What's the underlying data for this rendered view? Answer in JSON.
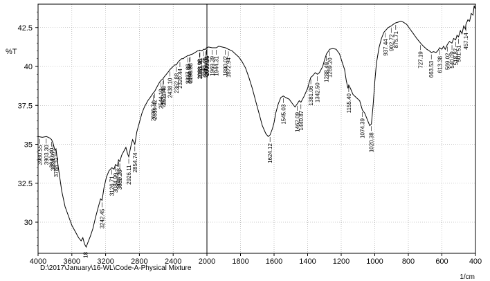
{
  "chart_data": {
    "type": "line",
    "title": "",
    "ylabel": "%T",
    "xunit_label": "1/cm",
    "file_path": "D:\\2017\\January\\16-WL\\Code-A-Physical Mixture",
    "xlim": [
      4000,
      400
    ],
    "ylim": [
      28.0,
      44.0
    ],
    "x_ticks": [
      4000,
      3600,
      3200,
      2800,
      2400,
      2000,
      1800,
      1600,
      1400,
      1200,
      1000,
      800,
      600,
      400
    ],
    "y_ticks": [
      30,
      32.5,
      35,
      37.5,
      40,
      42.5
    ],
    "y_tick_labels": [
      "30",
      "32.5",
      "35",
      "37.5",
      "40",
      "42.5"
    ],
    "grid": true,
    "divider_x": 2000,
    "series": [
      {
        "color": "#000000",
        "points": [
          [
            4000,
            35.5
          ],
          [
            3950,
            35.45
          ],
          [
            3900,
            35.5
          ],
          [
            3860,
            35.4
          ],
          [
            3840,
            35.3
          ],
          [
            3824,
            35.1
          ],
          [
            3800,
            34.6
          ],
          [
            3788,
            34.7
          ],
          [
            3760,
            33.5
          ],
          [
            3720,
            32.0
          ],
          [
            3680,
            31.0
          ],
          [
            3640,
            30.4
          ],
          [
            3600,
            29.8
          ],
          [
            3560,
            29.4
          ],
          [
            3520,
            29.0
          ],
          [
            3490,
            28.8
          ],
          [
            3470,
            29.0
          ],
          [
            3450,
            28.6
          ],
          [
            3430,
            28.4
          ],
          [
            3410,
            28.7
          ],
          [
            3380,
            29.1
          ],
          [
            3350,
            29.6
          ],
          [
            3320,
            30.3
          ],
          [
            3290,
            30.9
          ],
          [
            3260,
            31.5
          ],
          [
            3242,
            31.4
          ],
          [
            3220,
            32.2
          ],
          [
            3190,
            32.9
          ],
          [
            3160,
            33.3
          ],
          [
            3126,
            33.5
          ],
          [
            3100,
            33.4
          ],
          [
            3084,
            33.7
          ],
          [
            3060,
            33.6
          ],
          [
            3047,
            34.0
          ],
          [
            3032,
            33.9
          ],
          [
            3010,
            34.3
          ],
          [
            2980,
            34.6
          ],
          [
            2960,
            34.8
          ],
          [
            2940,
            34.4
          ],
          [
            2926,
            34.2
          ],
          [
            2900,
            34.9
          ],
          [
            2880,
            35.3
          ],
          [
            2854,
            35.0
          ],
          [
            2830,
            35.8
          ],
          [
            2800,
            36.4
          ],
          [
            2770,
            37.0
          ],
          [
            2740,
            37.4
          ],
          [
            2700,
            37.8
          ],
          [
            2660,
            38.1
          ],
          [
            2636,
            38.3
          ],
          [
            2619,
            38.4
          ],
          [
            2590,
            38.7
          ],
          [
            2560,
            39.0
          ],
          [
            2544,
            39.1
          ],
          [
            2522,
            39.2
          ],
          [
            2511,
            39.3
          ],
          [
            2480,
            39.5
          ],
          [
            2450,
            39.7
          ],
          [
            2438,
            39.8
          ],
          [
            2400,
            40.0
          ],
          [
            2380,
            40.1
          ],
          [
            2362,
            40.1
          ],
          [
            2340,
            40.3
          ],
          [
            2320,
            40.4
          ],
          [
            2300,
            40.5
          ],
          [
            2280,
            40.5
          ],
          [
            2260,
            40.6
          ],
          [
            2240,
            40.65
          ],
          [
            2227,
            40.7
          ],
          [
            2208,
            40.7
          ],
          [
            2198,
            40.75
          ],
          [
            2170,
            40.8
          ],
          [
            2140,
            40.9
          ],
          [
            2110,
            41.0
          ],
          [
            2088,
            41.0
          ],
          [
            2083,
            41.05
          ],
          [
            2060,
            41.0
          ],
          [
            2040,
            41.1
          ],
          [
            2017,
            41.1
          ],
          [
            2006,
            41.2
          ],
          [
            1990,
            41.25
          ],
          [
            1969,
            41.2
          ],
          [
            1944,
            41.2
          ],
          [
            1930,
            41.3
          ],
          [
            1910,
            41.25
          ],
          [
            1890,
            41.2
          ],
          [
            1872,
            41.1
          ],
          [
            1850,
            41.0
          ],
          [
            1830,
            40.8
          ],
          [
            1810,
            40.6
          ],
          [
            1790,
            40.3
          ],
          [
            1770,
            39.9
          ],
          [
            1750,
            39.3
          ],
          [
            1730,
            38.6
          ],
          [
            1710,
            37.8
          ],
          [
            1690,
            37.0
          ],
          [
            1670,
            36.2
          ],
          [
            1650,
            35.7
          ],
          [
            1635,
            35.5
          ],
          [
            1624,
            35.6
          ],
          [
            1610,
            36.0
          ],
          [
            1600,
            36.4
          ],
          [
            1590,
            37.0
          ],
          [
            1575,
            37.6
          ],
          [
            1560,
            38.0
          ],
          [
            1545,
            38.1
          ],
          [
            1530,
            38.0
          ],
          [
            1510,
            37.9
          ],
          [
            1490,
            37.6
          ],
          [
            1475,
            37.4
          ],
          [
            1462,
            37.6
          ],
          [
            1450,
            37.8
          ],
          [
            1440,
            37.7
          ],
          [
            1420,
            38.1
          ],
          [
            1400,
            38.6
          ],
          [
            1390,
            39.0
          ],
          [
            1381,
            39.3
          ],
          [
            1370,
            39.4
          ],
          [
            1355,
            39.6
          ],
          [
            1342,
            39.5
          ],
          [
            1330,
            39.6
          ],
          [
            1310,
            40.0
          ],
          [
            1300,
            40.4
          ],
          [
            1288,
            40.8
          ],
          [
            1275,
            41.0
          ],
          [
            1269,
            41.1
          ],
          [
            1250,
            41.15
          ],
          [
            1230,
            41.1
          ],
          [
            1210,
            40.8
          ],
          [
            1195,
            40.3
          ],
          [
            1180,
            39.8
          ],
          [
            1170,
            39.1
          ],
          [
            1160,
            38.6
          ],
          [
            1155,
            38.8
          ],
          [
            1145,
            38.6
          ],
          [
            1130,
            38.2
          ],
          [
            1110,
            38.0
          ],
          [
            1090,
            37.8
          ],
          [
            1074,
            37.2
          ],
          [
            1060,
            37.0
          ],
          [
            1045,
            36.6
          ],
          [
            1030,
            36.2
          ],
          [
            1020,
            36.3
          ],
          [
            1010,
            37.5
          ],
          [
            1000,
            39.0
          ],
          [
            990,
            40.2
          ],
          [
            975,
            41.2
          ],
          [
            960,
            41.8
          ],
          [
            945,
            42.2
          ],
          [
            937,
            42.3
          ],
          [
            920,
            42.5
          ],
          [
            902,
            42.6
          ],
          [
            890,
            42.7
          ],
          [
            875,
            42.8
          ],
          [
            860,
            42.85
          ],
          [
            845,
            42.9
          ],
          [
            830,
            42.85
          ],
          [
            810,
            42.7
          ],
          [
            790,
            42.4
          ],
          [
            770,
            42.1
          ],
          [
            750,
            41.8
          ],
          [
            727,
            41.5
          ],
          [
            710,
            41.3
          ],
          [
            690,
            41.1
          ],
          [
            675,
            41.0
          ],
          [
            663,
            40.9
          ],
          [
            650,
            40.95
          ],
          [
            635,
            40.9
          ],
          [
            625,
            41.0
          ],
          [
            613,
            41.2
          ],
          [
            600,
            41.1
          ],
          [
            590,
            41.3
          ],
          [
            580,
            41.1
          ],
          [
            568,
            41.4
          ],
          [
            555,
            41.6
          ],
          [
            540,
            41.5
          ],
          [
            530,
            41.8
          ],
          [
            518,
            41.7
          ],
          [
            510,
            42.0
          ],
          [
            501,
            41.9
          ],
          [
            490,
            42.3
          ],
          [
            480,
            42.1
          ],
          [
            470,
            42.6
          ],
          [
            460,
            42.4
          ],
          [
            457,
            42.7
          ],
          [
            445,
            43.0
          ],
          [
            435,
            42.9
          ],
          [
            425,
            43.4
          ],
          [
            415,
            43.3
          ],
          [
            408,
            43.9
          ],
          [
            402,
            43.7
          ],
          [
            400,
            44.0
          ]
        ]
      }
    ],
    "peak_labels": [
      {
        "x": 3980,
        "text": "3980.55"
      },
      {
        "x": 3903,
        "text": "3903.30"
      },
      {
        "x": 3840,
        "text": "3840.40"
      },
      {
        "x": 3824,
        "text": "3824.97"
      },
      {
        "x": 3788,
        "text": "3788.32"
      },
      {
        "x": 3242,
        "text": "3242.45"
      },
      {
        "x": 3126,
        "text": "3126.71"
      },
      {
        "x": 3084,
        "text": "3084.99"
      },
      {
        "x": 3047,
        "text": "3047.63"
      },
      {
        "x": 3032,
        "text": "3032.20"
      },
      {
        "x": 2926,
        "text": "2926.11"
      },
      {
        "x": 2854,
        "text": "2854.74"
      },
      {
        "x": 2636,
        "text": "2636.74"
      },
      {
        "x": 2619,
        "text": "2619.42"
      },
      {
        "x": 2544,
        "text": "2544.19"
      },
      {
        "x": 2522,
        "text": "2522.98"
      },
      {
        "x": 2511,
        "text": "2511.40"
      },
      {
        "x": 2438,
        "text": "2438.10"
      },
      {
        "x": 2362,
        "text": "2362.88"
      },
      {
        "x": 2320,
        "text": "2320.44"
      },
      {
        "x": 2227,
        "text": "2227.86"
      },
      {
        "x": 2208,
        "text": "2208.57"
      },
      {
        "x": 2198,
        "text": "2198.93"
      },
      {
        "x": 2088,
        "text": "2088.98"
      },
      {
        "x": 2083,
        "text": "2083.90"
      },
      {
        "x": 2040,
        "text": "2040.76"
      },
      {
        "x": 2017,
        "text": "2017.61"
      },
      {
        "x": 2006,
        "text": "2006.04"
      },
      {
        "x": 2000,
        "text": "2000.25"
      },
      {
        "x": 1969,
        "text": "1969.39"
      },
      {
        "x": 1944,
        "text": "1944.31"
      },
      {
        "x": 1890,
        "text": "1890.02"
      },
      {
        "x": 1872,
        "text": "1872.94"
      },
      {
        "x": 1624,
        "text": "1624.12"
      },
      {
        "x": 1545,
        "text": "1545.03"
      },
      {
        "x": 1462,
        "text": "1462.09"
      },
      {
        "x": 1440,
        "text": "1440.87"
      },
      {
        "x": 1381,
        "text": "1381.06"
      },
      {
        "x": 1342,
        "text": "1342.50"
      },
      {
        "x": 1288,
        "text": "1288.49"
      },
      {
        "x": 1269,
        "text": "1269.20"
      },
      {
        "x": 1155,
        "text": "1155.40"
      },
      {
        "x": 1074,
        "text": "1074.39"
      },
      {
        "x": 1020,
        "text": "1020.38"
      },
      {
        "x": 937,
        "text": "937.44"
      },
      {
        "x": 902,
        "text": "902.72"
      },
      {
        "x": 875,
        "text": "875.71"
      },
      {
        "x": 727,
        "text": "727.19"
      },
      {
        "x": 663,
        "text": "663.53"
      },
      {
        "x": 613,
        "text": "613.38"
      },
      {
        "x": 568,
        "text": "569.02"
      },
      {
        "x": 540,
        "text": "540.09"
      },
      {
        "x": 518,
        "text": "518.87"
      },
      {
        "x": 501,
        "text": "501.51"
      },
      {
        "x": 457,
        "text": "457.14"
      }
    ],
    "partial_labels": [
      {
        "x": 3440,
        "text": "18"
      }
    ]
  }
}
